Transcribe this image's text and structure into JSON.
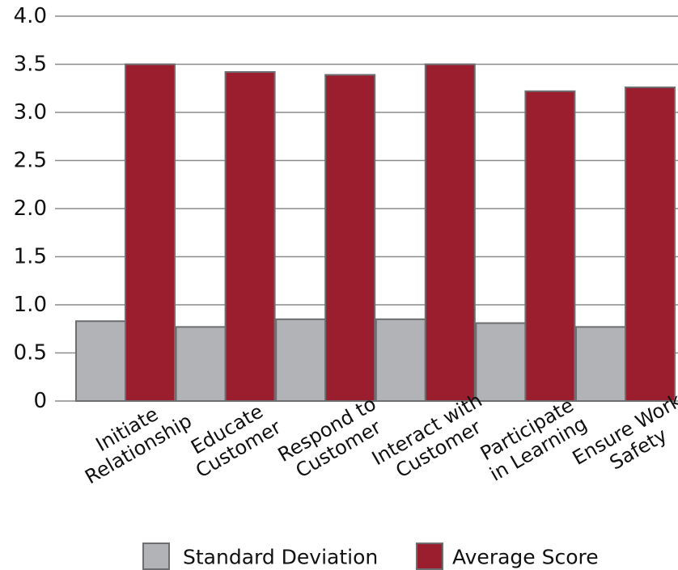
{
  "chart_data": {
    "type": "bar",
    "categories": [
      [
        "Initiate",
        "Relationship"
      ],
      [
        "Educate",
        "Customer"
      ],
      [
        "Respond to",
        "Customer"
      ],
      [
        "Interact with",
        "Customer"
      ],
      [
        "Participate",
        "in Learning"
      ],
      [
        "Ensure Work",
        "Safety"
      ]
    ],
    "series": [
      {
        "name": "Standard Deviation",
        "color": "#b1b3b6",
        "values": [
          0.83,
          0.77,
          0.85,
          0.85,
          0.81,
          0.77
        ]
      },
      {
        "name": "Average Score",
        "color": "#9b1e2f",
        "values": [
          3.5,
          3.42,
          3.39,
          3.5,
          3.22,
          3.26
        ]
      }
    ],
    "y_ticks": [
      "0",
      "0.5",
      "1.0",
      "1.5",
      "2.0",
      "2.5",
      "3.0",
      "3.5",
      "4.0"
    ],
    "ylim": [
      0,
      4
    ],
    "title": "",
    "xlabel": "",
    "ylabel": "",
    "grid": true,
    "legend_position": "bottom-center",
    "bar_stroke_color": "#6d6e71",
    "grid_color": "#8c8c8c"
  }
}
